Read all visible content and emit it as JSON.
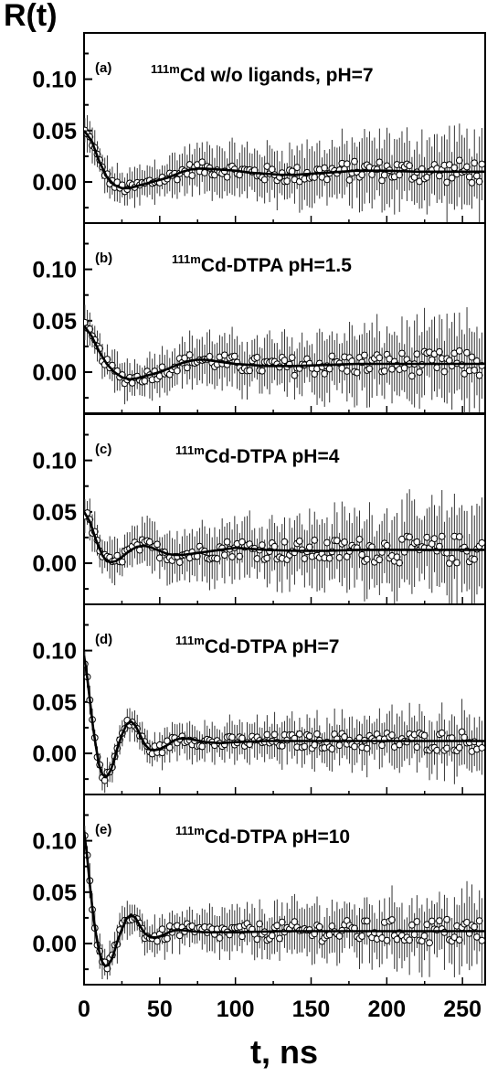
{
  "chart_data": {
    "type": "scatter",
    "ylabel": "R(t)",
    "xlabel": "t, ns",
    "xlim": [
      0,
      265
    ],
    "ylim": [
      -0.04,
      0.145
    ],
    "x_ticks": [
      0,
      50,
      100,
      150,
      200,
      250
    ],
    "x_tick_labels": [
      "0",
      "50",
      "100",
      "150",
      "200",
      "250"
    ],
    "y_ticks": [
      0.0,
      0.05,
      0.1
    ],
    "y_tick_labels": [
      "0.00",
      "0.05",
      "0.10"
    ],
    "grid": false,
    "legend": "none",
    "panels": [
      {
        "label": "(a)",
        "title_sup": "111m",
        "title_main": "Cd w/o ligands, pH=7",
        "fit": [
          [
            0,
            0.05
          ],
          [
            5,
            0.04
          ],
          [
            10,
            0.02
          ],
          [
            15,
            0.005
          ],
          [
            20,
            -0.003
          ],
          [
            25,
            -0.006
          ],
          [
            30,
            -0.006
          ],
          [
            35,
            -0.004
          ],
          [
            40,
            -0.002
          ],
          [
            45,
            0.0
          ],
          [
            50,
            0.002
          ],
          [
            55,
            0.004
          ],
          [
            60,
            0.007
          ],
          [
            65,
            0.01
          ],
          [
            70,
            0.012
          ],
          [
            75,
            0.013
          ],
          [
            80,
            0.013
          ],
          [
            90,
            0.012
          ],
          [
            100,
            0.011
          ],
          [
            110,
            0.009
          ],
          [
            120,
            0.008
          ],
          [
            130,
            0.007
          ],
          [
            140,
            0.007
          ],
          [
            150,
            0.008
          ],
          [
            160,
            0.009
          ],
          [
            170,
            0.01
          ],
          [
            180,
            0.011
          ],
          [
            190,
            0.011
          ],
          [
            200,
            0.011
          ],
          [
            220,
            0.01
          ],
          [
            240,
            0.01
          ],
          [
            265,
            0.01
          ]
        ],
        "scatter_amplitude": 0.008,
        "errorbar": 0.015
      },
      {
        "label": "(b)",
        "title_sup": "111m",
        "title_main": "Cd-DTPA pH=1.5",
        "fit": [
          [
            0,
            0.045
          ],
          [
            5,
            0.035
          ],
          [
            10,
            0.02
          ],
          [
            15,
            0.008
          ],
          [
            20,
            0.0
          ],
          [
            25,
            -0.005
          ],
          [
            30,
            -0.007
          ],
          [
            35,
            -0.006
          ],
          [
            40,
            -0.004
          ],
          [
            45,
            -0.002
          ],
          [
            50,
            0.0
          ],
          [
            55,
            0.003
          ],
          [
            60,
            0.006
          ],
          [
            65,
            0.009
          ],
          [
            70,
            0.011
          ],
          [
            75,
            0.012
          ],
          [
            80,
            0.012
          ],
          [
            90,
            0.01
          ],
          [
            100,
            0.008
          ],
          [
            110,
            0.007
          ],
          [
            120,
            0.006
          ],
          [
            140,
            0.006
          ],
          [
            160,
            0.007
          ],
          [
            180,
            0.008
          ],
          [
            200,
            0.008
          ],
          [
            220,
            0.008
          ],
          [
            240,
            0.008
          ],
          [
            265,
            0.008
          ]
        ],
        "scatter_amplitude": 0.009,
        "errorbar": 0.016
      },
      {
        "label": "(c)",
        "title_sup": "111m",
        "title_main": "Cd-DTPA pH=4",
        "fit": [
          [
            0,
            0.05
          ],
          [
            4,
            0.04
          ],
          [
            8,
            0.022
          ],
          [
            12,
            0.008
          ],
          [
            15,
            0.002
          ],
          [
            18,
            0.001
          ],
          [
            21,
            0.002
          ],
          [
            25,
            0.006
          ],
          [
            30,
            0.012
          ],
          [
            35,
            0.016
          ],
          [
            40,
            0.017
          ],
          [
            45,
            0.015
          ],
          [
            50,
            0.012
          ],
          [
            55,
            0.009
          ],
          [
            60,
            0.008
          ],
          [
            65,
            0.008
          ],
          [
            70,
            0.009
          ],
          [
            80,
            0.011
          ],
          [
            90,
            0.013
          ],
          [
            100,
            0.015
          ],
          [
            110,
            0.014
          ],
          [
            120,
            0.013
          ],
          [
            140,
            0.012
          ],
          [
            160,
            0.012
          ],
          [
            180,
            0.013
          ],
          [
            200,
            0.013
          ],
          [
            230,
            0.013
          ],
          [
            265,
            0.013
          ]
        ],
        "scatter_amplitude": 0.01,
        "errorbar": 0.018
      },
      {
        "label": "(d)",
        "title_sup": "111m",
        "title_main": "Cd-DTPA pH=7",
        "fit": [
          [
            0,
            0.095
          ],
          [
            2,
            0.075
          ],
          [
            4,
            0.05
          ],
          [
            6,
            0.025
          ],
          [
            8,
            0.005
          ],
          [
            10,
            -0.012
          ],
          [
            12,
            -0.02
          ],
          [
            14,
            -0.023
          ],
          [
            16,
            -0.021
          ],
          [
            18,
            -0.015
          ],
          [
            20,
            -0.006
          ],
          [
            22,
            0.005
          ],
          [
            25,
            0.018
          ],
          [
            28,
            0.028
          ],
          [
            31,
            0.031
          ],
          [
            34,
            0.027
          ],
          [
            37,
            0.018
          ],
          [
            40,
            0.009
          ],
          [
            43,
            0.004
          ],
          [
            46,
            0.003
          ],
          [
            50,
            0.004
          ],
          [
            55,
            0.008
          ],
          [
            60,
            0.013
          ],
          [
            65,
            0.015
          ],
          [
            70,
            0.014
          ],
          [
            80,
            0.011
          ],
          [
            90,
            0.01
          ],
          [
            100,
            0.011
          ],
          [
            120,
            0.012
          ],
          [
            150,
            0.012
          ],
          [
            200,
            0.012
          ],
          [
            265,
            0.012
          ]
        ],
        "scatter_amplitude": 0.007,
        "errorbar": 0.012
      },
      {
        "label": "(e)",
        "title_sup": "111m",
        "title_main": "Cd-DTPA pH=10",
        "fit": [
          [
            0,
            0.11
          ],
          [
            2,
            0.085
          ],
          [
            4,
            0.055
          ],
          [
            6,
            0.028
          ],
          [
            8,
            0.008
          ],
          [
            10,
            -0.008
          ],
          [
            12,
            -0.018
          ],
          [
            14,
            -0.022
          ],
          [
            16,
            -0.021
          ],
          [
            18,
            -0.016
          ],
          [
            20,
            -0.008
          ],
          [
            22,
            0.002
          ],
          [
            25,
            0.014
          ],
          [
            28,
            0.024
          ],
          [
            31,
            0.028
          ],
          [
            34,
            0.025
          ],
          [
            37,
            0.017
          ],
          [
            40,
            0.01
          ],
          [
            44,
            0.006
          ],
          [
            48,
            0.006
          ],
          [
            52,
            0.008
          ],
          [
            56,
            0.011
          ],
          [
            60,
            0.013
          ],
          [
            65,
            0.013
          ],
          [
            70,
            0.012
          ],
          [
            80,
            0.011
          ],
          [
            90,
            0.011
          ],
          [
            100,
            0.011
          ],
          [
            130,
            0.012
          ],
          [
            180,
            0.012
          ],
          [
            265,
            0.012
          ]
        ],
        "scatter_amplitude": 0.009,
        "errorbar": 0.014
      }
    ]
  }
}
